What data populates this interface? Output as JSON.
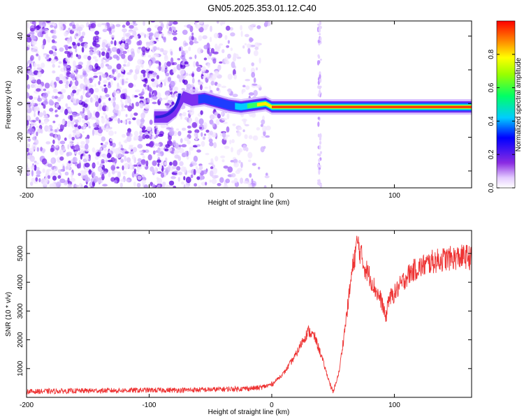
{
  "title": "GN05.2025.353.01.12.C40",
  "chart_data": [
    {
      "type": "heatmap",
      "xlabel": "Height of straight line (km)",
      "ylabel": "Frequency (Hz)",
      "xlim": [
        -200,
        163
      ],
      "ylim": [
        -50,
        49
      ],
      "x_ticks": [
        -200,
        -100,
        0,
        100
      ],
      "y_ticks": [
        -40,
        -20,
        0,
        20,
        40
      ],
      "colorbar": {
        "label": "Normalized spectral amplitude",
        "range": [
          0,
          1
        ],
        "ticks": [
          0.0,
          0.2,
          0.4,
          0.6,
          0.8
        ],
        "tick_labels": [
          "0.0",
          "0.2",
          "0.4",
          "0.6",
          "0.8"
        ],
        "colormap": "rainbow (violet-blue-cyan-green-yellow-red)"
      },
      "features": {
        "noise_region_x": [
          -200,
          -10
        ],
        "ridge_centerline": {
          "x": [
            -95,
            -85,
            -78,
            -72,
            -65,
            -55,
            -45,
            -35,
            -25,
            -15,
            -5,
            0,
            20,
            40,
            60,
            80,
            100,
            120,
            140,
            163
          ],
          "y": [
            -8,
            -8,
            -4,
            4,
            2,
            3,
            1,
            -1,
            -2,
            -1,
            0,
            -2,
            -2,
            -2,
            -2,
            -2,
            -2,
            -2,
            -2,
            -2
          ]
        },
        "vertical_stripe_x": 39
      }
    },
    {
      "type": "line",
      "xlabel": "Height of straight line (km)",
      "ylabel": "SNR (10 * v/v)",
      "xlim": [
        -200,
        163
      ],
      "ylim": [
        0,
        5800
      ],
      "x_ticks": [
        -200,
        -100,
        0,
        100
      ],
      "y_ticks": [
        1000,
        2000,
        3000,
        4000,
        5000
      ],
      "color": "#ee3333",
      "series": [
        {
          "name": "SNR",
          "x": [
            -200,
            -150,
            -100,
            -75,
            -50,
            -25,
            -10,
            0,
            10,
            20,
            25,
            30,
            35,
            40,
            45,
            50,
            55,
            60,
            65,
            68,
            70,
            75,
            80,
            85,
            90,
            93,
            95,
            100,
            105,
            110,
            115,
            120,
            130,
            140,
            150,
            160,
            163
          ],
          "y": [
            200,
            230,
            250,
            250,
            270,
            300,
            330,
            450,
            850,
            1500,
            1950,
            2300,
            2100,
            1500,
            800,
            150,
            900,
            2500,
            4200,
            5000,
            5400,
            4600,
            4200,
            3700,
            3300,
            2700,
            3400,
            3600,
            3900,
            4200,
            4400,
            4500,
            4700,
            4800,
            4850,
            4900,
            4800
          ]
        }
      ]
    }
  ]
}
